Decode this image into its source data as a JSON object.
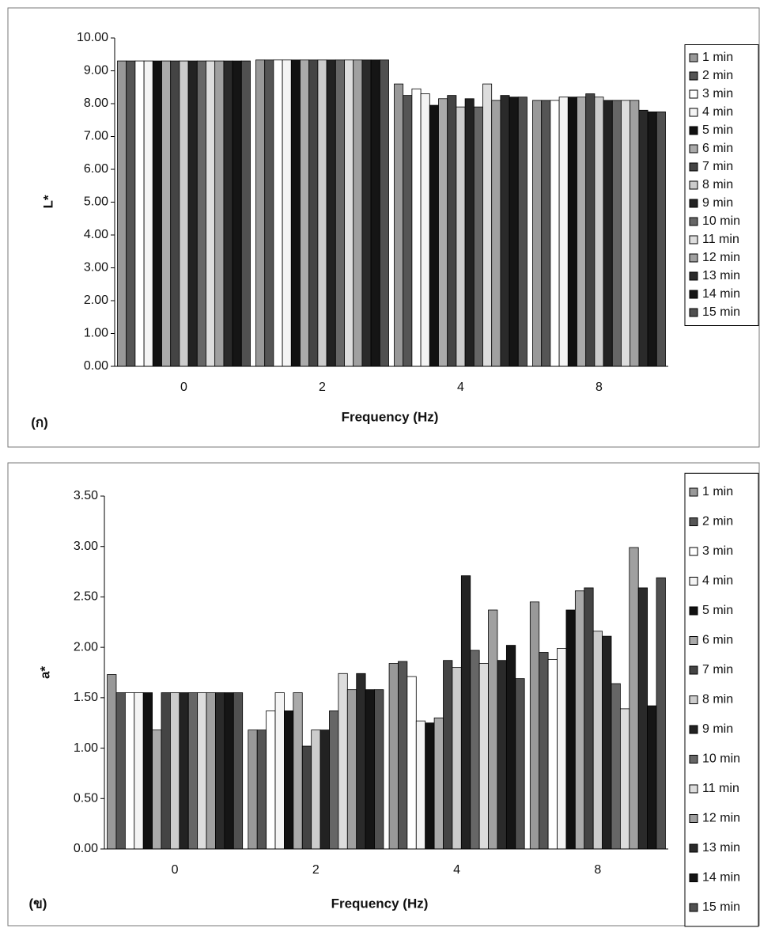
{
  "chart_data": [
    {
      "type": "bar",
      "panel_label": "(ก)",
      "x_label": "Frequency (Hz)",
      "y_label": "L*",
      "categories": [
        "0",
        "2",
        "4",
        "8"
      ],
      "ylim": [
        0,
        10
      ],
      "yticks": [
        {
          "value": 0,
          "label": "0.00"
        },
        {
          "value": 1,
          "label": "1.00"
        },
        {
          "value": 2,
          "label": "2.00"
        },
        {
          "value": 3,
          "label": "3.00"
        },
        {
          "value": 4,
          "label": "4.00"
        },
        {
          "value": 5,
          "label": "5.00"
        },
        {
          "value": 6,
          "label": "6.00"
        },
        {
          "value": 7,
          "label": "7.00"
        },
        {
          "value": 8,
          "label": "8.00"
        },
        {
          "value": 9,
          "label": "9.00"
        },
        {
          "value": 10,
          "label": "10.00"
        }
      ],
      "series": [
        {
          "name": "1 min",
          "color": "#999999",
          "values": [
            9.3,
            9.33,
            8.6,
            8.1
          ]
        },
        {
          "name": "2 min",
          "color": "#555555",
          "values": [
            9.3,
            9.33,
            8.25,
            8.1
          ]
        },
        {
          "name": "3 min",
          "color": "#ffffff",
          "values": [
            9.3,
            9.33,
            8.45,
            8.1
          ]
        },
        {
          "name": "4 min",
          "color": "#f4f4f4",
          "values": [
            9.3,
            9.33,
            8.3,
            8.2
          ]
        },
        {
          "name": "5 min",
          "color": "#111111",
          "values": [
            9.3,
            9.33,
            7.95,
            8.2
          ]
        },
        {
          "name": "6 min",
          "color": "#aaaaaa",
          "values": [
            9.3,
            9.33,
            8.15,
            8.2
          ]
        },
        {
          "name": "7 min",
          "color": "#444444",
          "values": [
            9.3,
            9.33,
            8.25,
            8.3
          ]
        },
        {
          "name": "8 min",
          "color": "#cccccc",
          "values": [
            9.3,
            9.33,
            7.9,
            8.2
          ]
        },
        {
          "name": "9 min",
          "color": "#222222",
          "values": [
            9.3,
            9.33,
            8.15,
            8.1
          ]
        },
        {
          "name": "10 min",
          "color": "#666666",
          "values": [
            9.3,
            9.33,
            7.9,
            8.1
          ]
        },
        {
          "name": "11 min",
          "color": "#dddddd",
          "values": [
            9.3,
            9.33,
            8.6,
            8.1
          ]
        },
        {
          "name": "12 min",
          "color": "#a0a0a0",
          "values": [
            9.3,
            9.33,
            8.1,
            8.1
          ]
        },
        {
          "name": "13 min",
          "color": "#2a2a2a",
          "values": [
            9.3,
            9.33,
            8.25,
            7.8
          ]
        },
        {
          "name": "14 min",
          "color": "#151515",
          "values": [
            9.3,
            9.33,
            8.2,
            7.75
          ]
        },
        {
          "name": "15 min",
          "color": "#505050",
          "values": [
            9.3,
            9.33,
            8.2,
            7.75
          ]
        }
      ]
    },
    {
      "type": "bar",
      "panel_label": "(ข)",
      "x_label": "Frequency (Hz)",
      "y_label": "a*",
      "categories": [
        "0",
        "2",
        "4",
        "8"
      ],
      "ylim": [
        0,
        3.5
      ],
      "yticks": [
        {
          "value": 0,
          "label": "0.00"
        },
        {
          "value": 0.5,
          "label": "0.50"
        },
        {
          "value": 1,
          "label": "1.00"
        },
        {
          "value": 1.5,
          "label": "1.50"
        },
        {
          "value": 2,
          "label": "2.00"
        },
        {
          "value": 2.5,
          "label": "2.50"
        },
        {
          "value": 3,
          "label": "3.00"
        },
        {
          "value": 3.5,
          "label": "3.50"
        }
      ],
      "series": [
        {
          "name": "1 min",
          "color": "#999999",
          "values": [
            1.73,
            1.18,
            1.84,
            2.45
          ]
        },
        {
          "name": "2 min",
          "color": "#555555",
          "values": [
            1.55,
            1.18,
            1.86,
            1.95
          ]
        },
        {
          "name": "3 min",
          "color": "#ffffff",
          "values": [
            1.55,
            1.37,
            1.71,
            1.88
          ]
        },
        {
          "name": "4 min",
          "color": "#f4f4f4",
          "values": [
            1.55,
            1.55,
            1.27,
            1.99
          ]
        },
        {
          "name": "5 min",
          "color": "#111111",
          "values": [
            1.55,
            1.37,
            1.25,
            2.37
          ]
        },
        {
          "name": "6 min",
          "color": "#aaaaaa",
          "values": [
            1.18,
            1.55,
            1.3,
            2.56
          ]
        },
        {
          "name": "7 min",
          "color": "#444444",
          "values": [
            1.55,
            1.02,
            1.87,
            2.59
          ]
        },
        {
          "name": "8 min",
          "color": "#cccccc",
          "values": [
            1.55,
            1.18,
            1.8,
            2.16
          ]
        },
        {
          "name": "9 min",
          "color": "#222222",
          "values": [
            1.55,
            1.18,
            2.71,
            2.11
          ]
        },
        {
          "name": "10 min",
          "color": "#666666",
          "values": [
            1.55,
            1.37,
            1.97,
            1.64
          ]
        },
        {
          "name": "11 min",
          "color": "#dddddd",
          "values": [
            1.55,
            1.74,
            1.84,
            1.39
          ]
        },
        {
          "name": "12 min",
          "color": "#a0a0a0",
          "values": [
            1.55,
            1.58,
            2.37,
            2.99
          ]
        },
        {
          "name": "13 min",
          "color": "#2a2a2a",
          "values": [
            1.55,
            1.74,
            1.87,
            2.59
          ]
        },
        {
          "name": "14 min",
          "color": "#151515",
          "values": [
            1.55,
            1.58,
            2.02,
            1.42
          ]
        },
        {
          "name": "15 min",
          "color": "#505050",
          "values": [
            1.55,
            1.58,
            1.69,
            2.69
          ]
        }
      ]
    }
  ]
}
